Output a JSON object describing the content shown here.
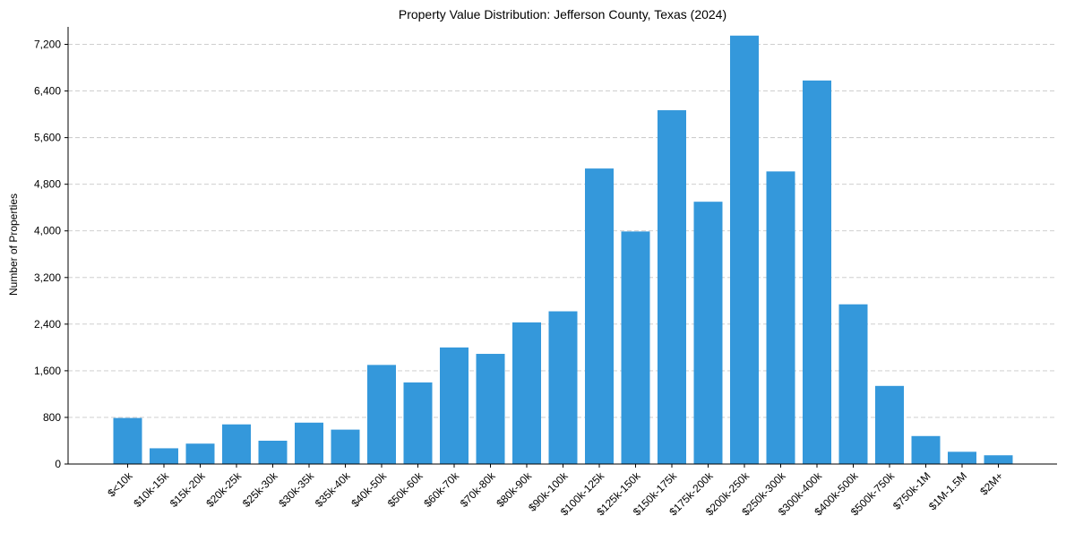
{
  "chart_data": {
    "type": "bar",
    "title": "Property Value Distribution: Jefferson County, Texas (2024)",
    "xlabel": "",
    "ylabel": "Number of Properties",
    "ylim": [
      0,
      7500
    ],
    "yticks": [
      0,
      800,
      1600,
      2400,
      3200,
      4000,
      4800,
      5600,
      6400,
      7200
    ],
    "ytick_labels": [
      "0",
      "800",
      "1,600",
      "2,400",
      "3,200",
      "4,000",
      "4,800",
      "5,600",
      "6,400",
      "7,200"
    ],
    "grid": "y-dashed",
    "legend": "none",
    "color": "#3498db",
    "categories": [
      "$<10k",
      "$10k-15k",
      "$15k-20k",
      "$20k-25k",
      "$25k-30k",
      "$30k-35k",
      "$35k-40k",
      "$40k-50k",
      "$50k-60k",
      "$60k-70k",
      "$70k-80k",
      "$80k-90k",
      "$90k-100k",
      "$100k-125k",
      "$125k-150k",
      "$150k-175k",
      "$175k-200k",
      "$200k-250k",
      "$250k-300k",
      "$300k-400k",
      "$400k-500k",
      "$500k-750k",
      "$750k-1M",
      "$1M-1.5M",
      "$2M+"
    ],
    "values": [
      790,
      270,
      350,
      680,
      400,
      710,
      590,
      1700,
      1400,
      2000,
      1890,
      2430,
      2620,
      5070,
      3990,
      6070,
      4500,
      7350,
      5020,
      6580,
      2740,
      1340,
      480,
      210,
      150
    ]
  }
}
